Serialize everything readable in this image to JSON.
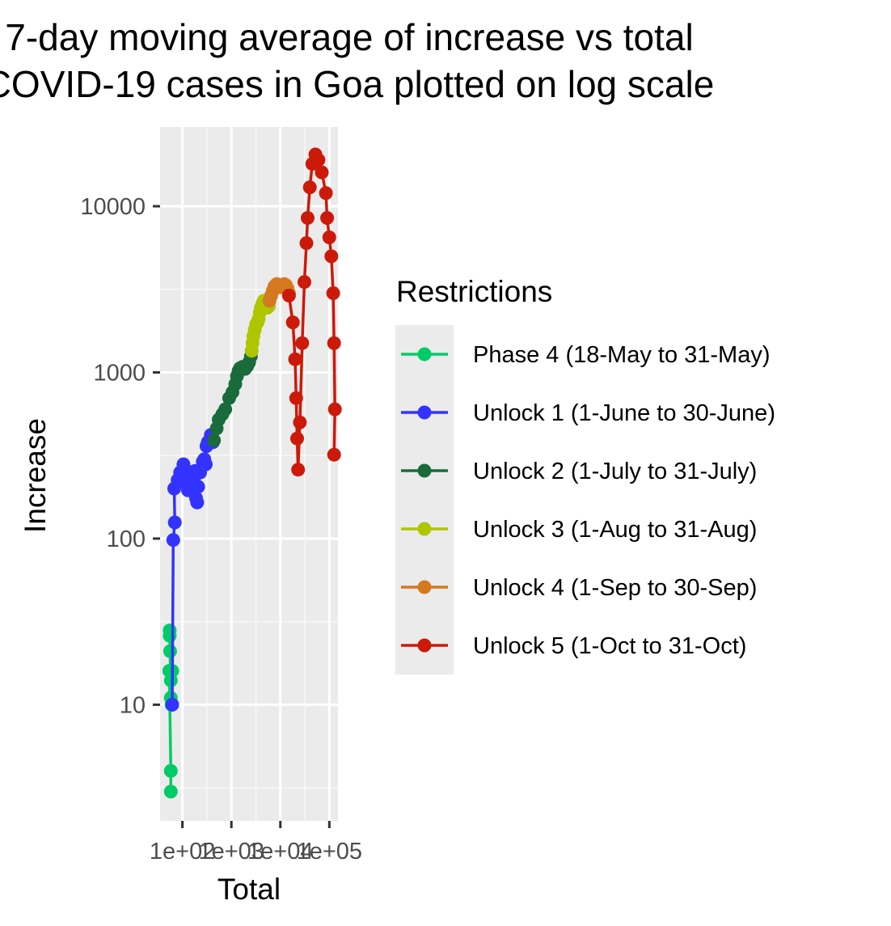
{
  "chart_data": {
    "type": "line",
    "title_lines": [
      "7-day moving average of increase vs total",
      "COVID-19 cases in Goa plotted on log scale"
    ],
    "xlabel": "Total",
    "ylabel": "Increase",
    "x_scale": "log10",
    "y_scale": "log10",
    "xlim": [
      35,
      150000
    ],
    "ylim": [
      2,
      30000
    ],
    "x_ticks": [
      {
        "value": 100,
        "label": "1e+02"
      },
      {
        "value": 1000,
        "label": "1e+03"
      },
      {
        "value": 10000,
        "label": "1e+04"
      },
      {
        "value": 100000,
        "label": "1e+05"
      }
    ],
    "y_ticks": [
      {
        "value": 10,
        "label": "10"
      },
      {
        "value": 100,
        "label": "100"
      },
      {
        "value": 1000,
        "label": "1000"
      },
      {
        "value": 10000,
        "label": "10000"
      }
    ],
    "grid": true,
    "legend": {
      "title": "Restrictions",
      "position": "right"
    },
    "series": [
      {
        "name": "Phase 4 (18-May to 31-May)",
        "color": "#00cc66",
        "points": [
          [
            58,
            3
          ],
          [
            58,
            4
          ],
          [
            54,
            16
          ],
          [
            58,
            14
          ],
          [
            56,
            21
          ],
          [
            55,
            26
          ],
          [
            55,
            28
          ],
          [
            58,
            11
          ],
          [
            62,
            16
          ],
          [
            60,
            10
          ]
        ]
      },
      {
        "name": "Unlock 1 (1-June to 30-June)",
        "color": "#3333ff",
        "points": [
          [
            62,
            10
          ],
          [
            65,
            98
          ],
          [
            70,
            125
          ],
          [
            68,
            200
          ],
          [
            80,
            225
          ],
          [
            90,
            250
          ],
          [
            100,
            240
          ],
          [
            105,
            280
          ],
          [
            108,
            265
          ],
          [
            120,
            215
          ],
          [
            130,
            195
          ],
          [
            140,
            220
          ],
          [
            150,
            235
          ],
          [
            160,
            200
          ],
          [
            170,
            210
          ],
          [
            180,
            255
          ],
          [
            190,
            175
          ],
          [
            200,
            165
          ],
          [
            210,
            205
          ],
          [
            230,
            250
          ],
          [
            260,
            290
          ],
          [
            300,
            280
          ],
          [
            280,
            300
          ],
          [
            310,
            360
          ],
          [
            330,
            380
          ],
          [
            380,
            420
          ],
          [
            420,
            380
          ]
        ]
      },
      {
        "name": "Unlock 2 (1-July to 31-July)",
        "color": "#1a6b3c",
        "points": [
          [
            440,
            390
          ],
          [
            500,
            460
          ],
          [
            550,
            520
          ],
          [
            650,
            560
          ],
          [
            750,
            600
          ],
          [
            900,
            700
          ],
          [
            1050,
            760
          ],
          [
            1200,
            850
          ],
          [
            1300,
            950
          ],
          [
            1400,
            1020
          ],
          [
            1500,
            1060
          ],
          [
            1700,
            1080
          ],
          [
            1900,
            1050
          ],
          [
            2100,
            1090
          ],
          [
            2300,
            1150
          ],
          [
            2500,
            1250
          ]
        ]
      },
      {
        "name": "Unlock 3 (1-Aug to 31-Aug)",
        "color": "#aec600",
        "points": [
          [
            2600,
            1350
          ],
          [
            2700,
            1500
          ],
          [
            2800,
            1650
          ],
          [
            3000,
            1800
          ],
          [
            3200,
            1950
          ],
          [
            3400,
            2000
          ],
          [
            3600,
            2100
          ],
          [
            3800,
            2300
          ],
          [
            4000,
            2450
          ],
          [
            4300,
            2600
          ],
          [
            4600,
            2700
          ],
          [
            5000,
            2550
          ],
          [
            5400,
            2450
          ],
          [
            5800,
            2500
          ]
        ]
      },
      {
        "name": "Unlock 4 (1-Sep to 30-Sep)",
        "color": "#d4791f",
        "points": [
          [
            6000,
            2700
          ],
          [
            6500,
            2900
          ],
          [
            7000,
            3100
          ],
          [
            7600,
            3300
          ],
          [
            8400,
            3400
          ],
          [
            9200,
            3350
          ],
          [
            10000,
            3250
          ],
          [
            11000,
            3300
          ],
          [
            12000,
            3400
          ],
          [
            13000,
            3350
          ],
          [
            14000,
            3200
          ],
          [
            15000,
            3000
          ]
        ]
      },
      {
        "name": "Unlock 5 (1-Oct to 31-Oct)",
        "color": "#cc1a0a",
        "points": [
          [
            15000,
            2900
          ],
          [
            18000,
            2000
          ],
          [
            20000,
            1200
          ],
          [
            21000,
            700
          ],
          [
            22000,
            400
          ],
          [
            23000,
            260
          ],
          [
            25000,
            500
          ],
          [
            28000,
            1500
          ],
          [
            31000,
            3500
          ],
          [
            34000,
            6000
          ],
          [
            36000,
            8500
          ],
          [
            40000,
            13000
          ],
          [
            45000,
            18000
          ],
          [
            52000,
            20500
          ],
          [
            60000,
            19000
          ],
          [
            70000,
            16000
          ],
          [
            85000,
            12000
          ],
          [
            90000,
            8500
          ],
          [
            100000,
            6500
          ],
          [
            110000,
            5000
          ],
          [
            120000,
            3000
          ],
          [
            125000,
            1500
          ],
          [
            130000,
            600
          ],
          [
            125000,
            320
          ]
        ]
      }
    ]
  }
}
